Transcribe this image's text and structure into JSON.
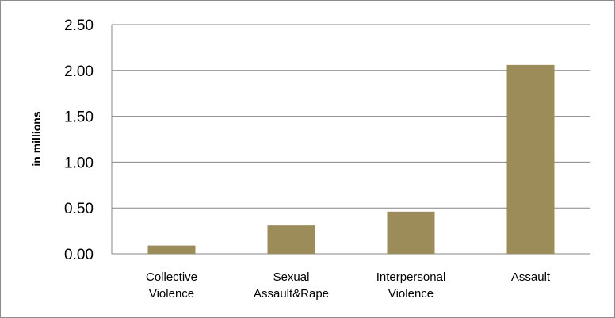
{
  "chart_data": {
    "type": "bar",
    "title": "",
    "xlabel": "",
    "ylabel": "in millions",
    "ylim": [
      0,
      2.5
    ],
    "yticks": [
      "0.00",
      "0.50",
      "1.00",
      "1.50",
      "2.00",
      "2.50"
    ],
    "categories": [
      [
        "Collective",
        "Violence"
      ],
      [
        "Sexual",
        "Assault&Rape"
      ],
      [
        "Interpersonal",
        "Violence"
      ],
      [
        "Assault"
      ]
    ],
    "values": [
      0.09,
      0.31,
      0.46,
      2.06
    ],
    "bar_color": "#9c8c5a",
    "grid": true,
    "legend": "none"
  }
}
